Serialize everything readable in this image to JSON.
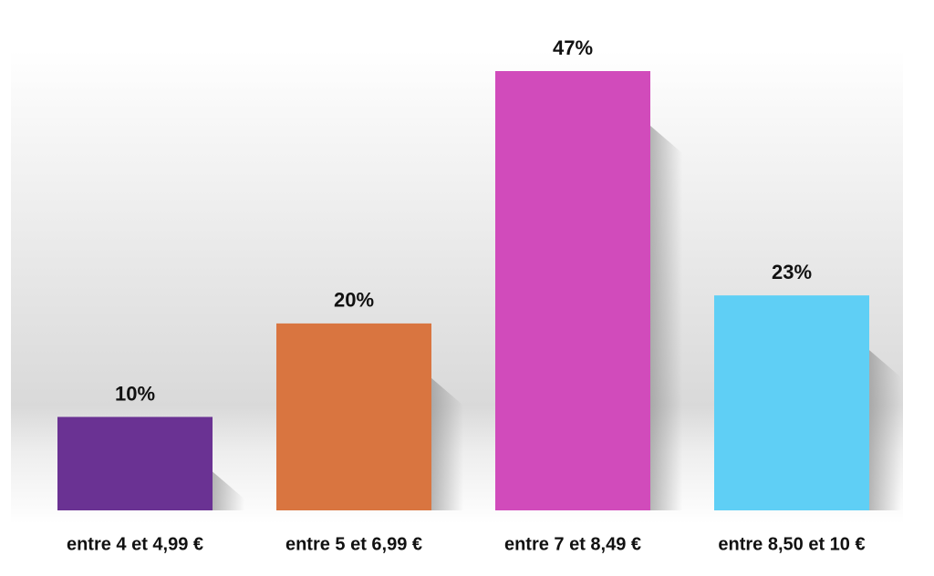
{
  "chart_data": {
    "type": "bar",
    "categories": [
      "entre 4 et 4,99 €",
      "entre 5 et 6,99 €",
      "entre 7 et 8,49 €",
      "entre 8,50 et 10 €"
    ],
    "values": [
      10,
      20,
      47,
      23
    ],
    "value_labels": [
      "10%",
      "20%",
      "47%",
      "23%"
    ],
    "colors": [
      "#6a3293",
      "#d97540",
      "#d14bbb",
      "#5fcff5"
    ]
  }
}
